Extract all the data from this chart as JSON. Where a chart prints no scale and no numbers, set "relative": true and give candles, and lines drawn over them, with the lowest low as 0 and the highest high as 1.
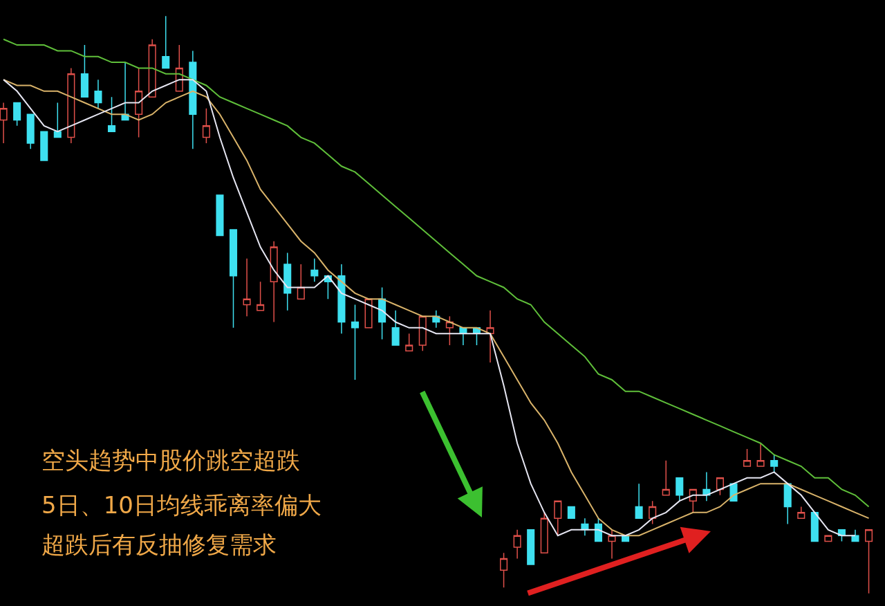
{
  "chart_data": {
    "type": "candlestick",
    "relative": true,
    "categories": [
      null,
      null,
      null,
      null,
      null,
      null,
      null,
      null,
      null,
      null,
      null,
      null,
      null,
      null,
      null,
      null,
      null,
      null,
      null,
      null,
      null,
      null,
      null,
      null,
      null,
      null,
      null,
      null,
      null,
      null,
      null,
      null,
      null,
      null,
      null,
      null,
      null,
      null,
      null,
      null,
      null,
      null,
      null,
      null,
      null,
      null,
      null,
      null,
      null,
      null,
      null,
      null,
      null,
      null,
      null,
      null,
      null,
      null,
      null,
      null,
      null,
      null,
      null,
      null,
      null
    ],
    "ohlc": [
      [
        0.82,
        0.85,
        0.78,
        0.84
      ],
      [
        0.85,
        0.85,
        0.81,
        0.82
      ],
      [
        0.83,
        0.83,
        0.77,
        0.78
      ],
      [
        0.8,
        0.8,
        0.75,
        0.75
      ],
      [
        0.8,
        0.85,
        0.79,
        0.79
      ],
      [
        0.79,
        0.91,
        0.78,
        0.9
      ],
      [
        0.9,
        0.95,
        0.86,
        0.86
      ],
      [
        0.87,
        0.89,
        0.84,
        0.85
      ],
      [
        0.81,
        0.86,
        0.8,
        0.8
      ],
      [
        0.83,
        0.92,
        0.82,
        0.82
      ],
      [
        0.83,
        0.91,
        0.79,
        0.87
      ],
      [
        0.86,
        0.96,
        0.86,
        0.95
      ],
      [
        0.93,
        1.0,
        0.91,
        0.91
      ],
      [
        0.87,
        0.95,
        0.87,
        0.91
      ],
      [
        0.92,
        0.94,
        0.77,
        0.83
      ],
      [
        0.79,
        0.84,
        0.78,
        0.81
      ],
      [
        0.69,
        0.69,
        0.62,
        0.62
      ],
      [
        0.63,
        0.63,
        0.46,
        0.55
      ],
      [
        0.5,
        0.58,
        0.48,
        0.51
      ],
      [
        0.49,
        0.54,
        0.49,
        0.5
      ],
      [
        0.54,
        0.61,
        0.47,
        0.6
      ],
      [
        0.57,
        0.59,
        0.49,
        0.52
      ],
      [
        0.51,
        0.57,
        0.51,
        0.53
      ],
      [
        0.56,
        0.58,
        0.54,
        0.55
      ],
      [
        0.55,
        0.55,
        0.51,
        0.54
      ],
      [
        0.55,
        0.57,
        0.45,
        0.47
      ],
      [
        0.47,
        0.5,
        0.37,
        0.46
      ],
      [
        0.46,
        0.51,
        0.46,
        0.51
      ],
      [
        0.51,
        0.53,
        0.44,
        0.47
      ],
      [
        0.46,
        0.49,
        0.43,
        0.43
      ],
      [
        0.42,
        0.45,
        0.42,
        0.43
      ],
      [
        0.43,
        0.48,
        0.42,
        0.48
      ],
      [
        0.48,
        0.49,
        0.46,
        0.47
      ],
      [
        0.46,
        0.48,
        0.43,
        0.47
      ],
      [
        0.46,
        0.46,
        0.43,
        0.45
      ],
      [
        0.46,
        0.46,
        0.43,
        0.45
      ],
      [
        0.45,
        0.49,
        0.4,
        0.46
      ],
      [
        0.04,
        0.07,
        0.01,
        0.06
      ],
      [
        0.08,
        0.11,
        0.06,
        0.1
      ],
      [
        0.11,
        0.11,
        0.05,
        0.05
      ],
      [
        0.07,
        0.14,
        0.07,
        0.13
      ],
      [
        0.13,
        0.16,
        0.1,
        0.16
      ],
      [
        0.15,
        0.15,
        0.13,
        0.13
      ],
      [
        0.12,
        0.13,
        0.1,
        0.11
      ],
      [
        0.12,
        0.13,
        0.09,
        0.09
      ],
      [
        0.09,
        0.11,
        0.06,
        0.1
      ],
      [
        0.1,
        0.1,
        0.09,
        0.09
      ],
      [
        0.15,
        0.19,
        0.13,
        0.13
      ],
      [
        0.13,
        0.16,
        0.12,
        0.15
      ],
      [
        0.17,
        0.23,
        0.17,
        0.18
      ],
      [
        0.2,
        0.2,
        0.16,
        0.17
      ],
      [
        0.16,
        0.18,
        0.14,
        0.18
      ],
      [
        0.18,
        0.21,
        0.16,
        0.17
      ],
      [
        0.18,
        0.2,
        0.17,
        0.2
      ],
      [
        0.19,
        0.19,
        0.16,
        0.16
      ],
      [
        0.22,
        0.25,
        0.22,
        0.23
      ],
      [
        0.22,
        0.26,
        0.22,
        0.23
      ],
      [
        0.23,
        0.24,
        0.21,
        0.22
      ],
      [
        0.19,
        0.19,
        0.12,
        0.15
      ],
      [
        0.13,
        0.15,
        0.13,
        0.14
      ],
      [
        0.14,
        0.14,
        0.09,
        0.09
      ],
      [
        0.09,
        0.1,
        0.09,
        0.1
      ],
      [
        0.11,
        0.11,
        0.09,
        0.1
      ],
      [
        0.1,
        0.11,
        0.09,
        0.09
      ],
      [
        0.09,
        0.11,
        0.0,
        0.11
      ]
    ],
    "series": [
      {
        "type": "line",
        "color": "#5fbf3a",
        "values": [
          0.96,
          0.95,
          0.95,
          0.95,
          0.94,
          0.94,
          0.93,
          0.93,
          0.92,
          0.92,
          0.91,
          0.91,
          0.9,
          0.9,
          0.89,
          0.88,
          0.86,
          0.85,
          0.84,
          0.83,
          0.82,
          0.81,
          0.79,
          0.78,
          0.76,
          0.74,
          0.73,
          0.71,
          0.69,
          0.67,
          0.65,
          0.63,
          0.61,
          0.59,
          0.57,
          0.55,
          0.54,
          0.53,
          0.51,
          0.5,
          0.47,
          0.45,
          0.43,
          0.41,
          0.38,
          0.37,
          0.35,
          0.35,
          0.34,
          0.33,
          0.32,
          0.31,
          0.3,
          0.29,
          0.28,
          0.27,
          0.26,
          0.24,
          0.23,
          0.22,
          0.2,
          0.2,
          0.18,
          0.17,
          0.15
        ]
      },
      {
        "type": "line",
        "color": "#d9b36a",
        "values": [
          0.89,
          0.88,
          0.88,
          0.87,
          0.87,
          0.86,
          0.85,
          0.84,
          0.83,
          0.83,
          0.82,
          0.83,
          0.85,
          0.86,
          0.87,
          0.86,
          0.83,
          0.79,
          0.75,
          0.7,
          0.67,
          0.64,
          0.61,
          0.59,
          0.56,
          0.54,
          0.52,
          0.51,
          0.51,
          0.5,
          0.49,
          0.48,
          0.48,
          0.47,
          0.46,
          0.46,
          0.45,
          0.41,
          0.37,
          0.33,
          0.3,
          0.26,
          0.21,
          0.17,
          0.13,
          0.11,
          0.1,
          0.1,
          0.11,
          0.12,
          0.13,
          0.14,
          0.14,
          0.15,
          0.17,
          0.18,
          0.19,
          0.19,
          0.19,
          0.18,
          0.17,
          0.16,
          0.15,
          0.14,
          0.13
        ]
      },
      {
        "type": "line",
        "color": "#e6e6f2",
        "values": [
          0.89,
          0.87,
          0.84,
          0.81,
          0.8,
          0.81,
          0.82,
          0.83,
          0.84,
          0.85,
          0.85,
          0.87,
          0.88,
          0.89,
          0.89,
          0.87,
          0.79,
          0.72,
          0.66,
          0.6,
          0.56,
          0.53,
          0.53,
          0.53,
          0.55,
          0.52,
          0.51,
          0.5,
          0.49,
          0.47,
          0.46,
          0.46,
          0.45,
          0.45,
          0.45,
          0.45,
          0.45,
          0.36,
          0.26,
          0.19,
          0.14,
          0.1,
          0.11,
          0.11,
          0.11,
          0.1,
          0.1,
          0.11,
          0.13,
          0.14,
          0.16,
          0.17,
          0.17,
          0.18,
          0.19,
          0.2,
          0.2,
          0.21,
          0.19,
          0.17,
          0.14,
          0.11,
          0.1,
          0.1,
          null
        ]
      }
    ],
    "annotations": [
      "空头趋势中股价跳空超跌",
      "5日、10日均线乖离率偏大",
      "超跌后有反抽修复需求"
    ]
  }
}
